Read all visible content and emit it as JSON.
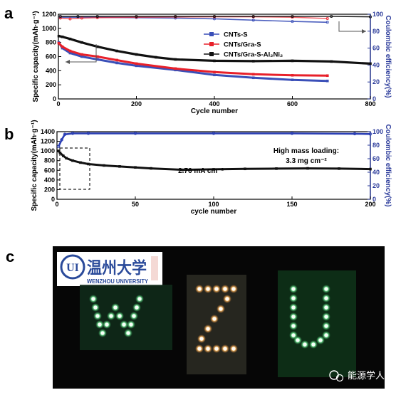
{
  "panel_labels": {
    "a": "a",
    "b": "b",
    "c": "c"
  },
  "colors": {
    "cnts_s": "#3a4fb8",
    "cnts_gra_s": "#e8202a",
    "cnts_gra_s_al2ni2": "#111111",
    "panel_b_capacity": "#111111",
    "panel_b_ce": "#2b3fb5",
    "right_axis": "#2a3a9a",
    "led_green": "#62e38a",
    "led_orange": "#ffbf73"
  },
  "chart_data": [
    {
      "panel": "a",
      "type": "line",
      "xlabel": "Cycle number",
      "ylabel": "Specific capacity(mAh·g⁻¹)",
      "y2label": "Coulombic efficiency(%)",
      "xlim": [
        0,
        800
      ],
      "ylim": [
        0,
        1200
      ],
      "y2lim": [
        0,
        100
      ],
      "xticks": [
        0,
        200,
        400,
        600,
        800
      ],
      "yticks": [
        0,
        200,
        400,
        600,
        800,
        1000,
        1200
      ],
      "y2ticks": [
        0,
        20,
        40,
        60,
        80,
        100
      ],
      "grid": false,
      "legend_position": "top-center",
      "legend": [
        "CNTs-S",
        "CNTs/Gra-S",
        "CNTs/Gra-S-Al₂Ni₂"
      ],
      "arrows": [
        "left",
        "right"
      ],
      "series": [
        {
          "name": "CNTs-S",
          "axis": "left",
          "x": [
            1,
            10,
            30,
            60,
            100,
            150,
            200,
            300,
            400,
            500,
            600,
            690
          ],
          "y": [
            800,
            720,
            650,
            600,
            560,
            510,
            470,
            410,
            340,
            300,
            270,
            255
          ]
        },
        {
          "name": "CNTs/Gra-S",
          "axis": "left",
          "x": [
            1,
            10,
            30,
            60,
            100,
            150,
            200,
            300,
            400,
            500,
            600,
            690
          ],
          "y": [
            790,
            740,
            680,
            630,
            600,
            550,
            500,
            430,
            380,
            350,
            335,
            330
          ]
        },
        {
          "name": "CNTs/Gra-S-Al₂Ni₂",
          "axis": "left",
          "x": [
            1,
            10,
            30,
            60,
            100,
            150,
            200,
            250,
            300,
            400,
            500,
            600,
            700,
            800
          ],
          "y": [
            890,
            880,
            850,
            800,
            740,
            680,
            630,
            590,
            560,
            540,
            535,
            540,
            530,
            500
          ]
        },
        {
          "name": "CNTs-S CE",
          "axis": "right",
          "x": [
            5,
            50,
            100,
            200,
            300,
            400,
            500,
            600,
            690
          ],
          "y": [
            96.5,
            96.5,
            96.4,
            96.0,
            95.5,
            94.6,
            93.0,
            91.5,
            90.5
          ]
        },
        {
          "name": "CNTs/Gra-S CE",
          "axis": "right",
          "x": [
            5,
            30,
            60,
            100,
            200,
            300,
            400,
            500,
            600,
            690
          ],
          "y": [
            95.5,
            94.5,
            95.5,
            96.0,
            96.5,
            96.8,
            97.0,
            97.0,
            96.5,
            95.0
          ]
        },
        {
          "name": "CNTs/Gra-S-Al₂Ni₂ CE",
          "axis": "right",
          "x": [
            5,
            50,
            100,
            200,
            300,
            400,
            500,
            600,
            700,
            800
          ],
          "y": [
            97.5,
            97.5,
            97.5,
            97.5,
            97.5,
            97.5,
            97.5,
            97.5,
            97.5,
            97.0
          ]
        }
      ]
    },
    {
      "panel": "b",
      "type": "line",
      "xlabel": "cycle number",
      "ylabel": "Specific capacity(mAh·g⁻¹)",
      "y2label": "Coulombic efficiency(%)",
      "xlim": [
        0,
        200
      ],
      "ylim": [
        0,
        1400
      ],
      "y2lim": [
        0,
        100
      ],
      "xticks": [
        0,
        50,
        100,
        150,
        200
      ],
      "yticks": [
        0,
        200,
        400,
        600,
        800,
        1000,
        1200,
        1400
      ],
      "y2ticks": [
        0,
        20,
        40,
        60,
        80,
        100
      ],
      "grid": false,
      "annotations": [
        "High mass loading:",
        "3.3 mg cm⁻²",
        "2.76 mA cm⁻²"
      ],
      "series": [
        {
          "axis": "left",
          "x": [
            1,
            2,
            4,
            6,
            10,
            15,
            20,
            30,
            40,
            50,
            60,
            80,
            100,
            120,
            140,
            160,
            180,
            200
          ],
          "y": [
            1000,
            960,
            900,
            850,
            800,
            760,
            730,
            700,
            680,
            660,
            640,
            610,
            620,
            630,
            635,
            640,
            635,
            625
          ]
        },
        {
          "axis": "right",
          "x": [
            1,
            3,
            5,
            10,
            20,
            50,
            100,
            150,
            190,
            200
          ],
          "y": [
            78,
            88,
            96,
            97.5,
            97.5,
            97.5,
            97.5,
            97.5,
            97.0,
            96.5
          ]
        }
      ]
    }
  ],
  "photo": {
    "logo_name_cn": "温州大学",
    "logo_name_en": "WENZHOU UNIVERSITY",
    "logo_seal": "UI",
    "letters": [
      "W",
      "Z",
      "U"
    ]
  },
  "watermark": "能源学人"
}
